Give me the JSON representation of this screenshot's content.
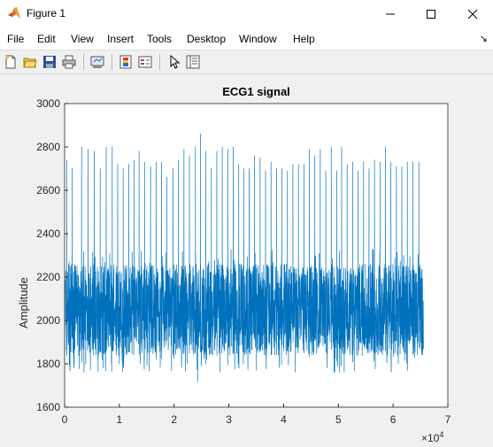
{
  "window": {
    "title": "Figure 1"
  },
  "menu": [
    "File",
    "Edit",
    "View",
    "Insert",
    "Tools",
    "Desktop",
    "Window",
    "Help"
  ],
  "toolbar": {
    "buttons": [
      "new-figure-icon",
      "open-file-icon",
      "save-icon",
      "print-icon",
      "link-plot-icon",
      "colorbar-icon",
      "legend-icon",
      "edit-plot-icon",
      "property-inspector-icon"
    ]
  },
  "colors": {
    "series": "#0072bd",
    "axes_bg": "#ffffff",
    "figure_bg": "#f0f0f0"
  },
  "chart_data": {
    "type": "line",
    "title": "ECG1 signal",
    "xlabel": "",
    "ylabel": "Amplitude",
    "xlim": [
      0,
      70000
    ],
    "ylim": [
      1600,
      3000
    ],
    "xticks": [
      "0",
      "1",
      "2",
      "3",
      "4",
      "5",
      "6",
      "7"
    ],
    "xtick_values": [
      0,
      10000,
      20000,
      30000,
      40000,
      50000,
      60000,
      70000
    ],
    "x_exponent_label": "×10",
    "x_exponent_power": "4",
    "yticks": [
      "1600",
      "1800",
      "2000",
      "2200",
      "2400",
      "2600",
      "2800",
      "3000"
    ],
    "ytick_values": [
      1600,
      1800,
      2000,
      2200,
      2400,
      2600,
      2800,
      3000
    ],
    "grid": false,
    "series": [
      {
        "values_description_free": true,
        "x_range": [
          0,
          65536
        ],
        "baseline": 2050,
        "noise_range": [
          1850,
          2250
        ],
        "peak_x": [
          400,
          1400,
          3100,
          4300,
          5400,
          6500,
          7600,
          8700,
          9700,
          10700,
          11700,
          12700,
          13600,
          14600,
          15700,
          16700,
          17700,
          18700,
          19800,
          20800,
          21800,
          22800,
          23900,
          24800,
          25800,
          26800,
          27800,
          28800,
          29800,
          30800,
          31800,
          32700,
          33700,
          34700,
          35700,
          36700,
          37700,
          38700,
          39700,
          40700,
          41700,
          42700,
          43700,
          44700,
          45700,
          46700,
          47700,
          48700,
          49700,
          50600,
          51600,
          52600,
          53600,
          54600,
          55600,
          56600,
          57600,
          58600,
          59600,
          60600,
          61600,
          62600,
          63600,
          64700
        ],
        "peak_y": [
          2740,
          2700,
          2800,
          2790,
          2780,
          2700,
          2800,
          2800,
          2720,
          2700,
          2720,
          2740,
          2780,
          2730,
          2710,
          2730,
          2730,
          2660,
          2700,
          2740,
          2790,
          2760,
          2800,
          2860,
          2780,
          2700,
          2780,
          2800,
          2790,
          2800,
          2720,
          2700,
          2700,
          2760,
          2750,
          2690,
          2730,
          2700,
          2700,
          2690,
          2720,
          2720,
          2720,
          2790,
          2760,
          2790,
          2690,
          2800,
          2690,
          2800,
          2720,
          2730,
          2690,
          2730,
          2700,
          2740,
          2730,
          2800,
          2730,
          2710,
          2710,
          2730,
          2730,
          2730
        ],
        "trough_y_min": 1720
      }
    ]
  }
}
